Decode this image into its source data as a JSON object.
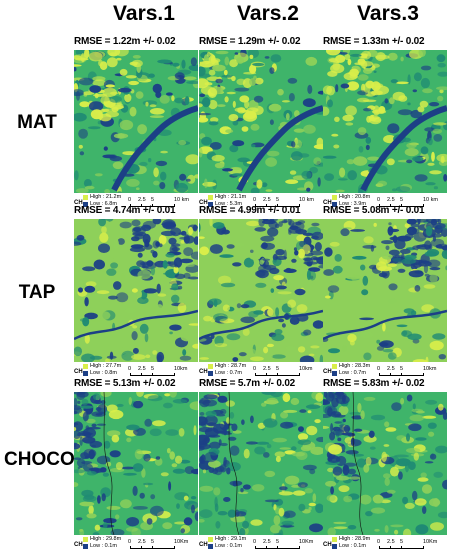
{
  "columns": [
    "Vars.1",
    "Vars.2",
    "Vars.3"
  ],
  "rows": [
    {
      "label": "MAT",
      "scale": {
        "ticks": [
          "0",
          "2.5",
          "5"
        ],
        "end": "10 km"
      },
      "panels": [
        {
          "rmse": "RMSE = 1.22m +/- 0.02",
          "high": "High : 21.2m",
          "low": "Low : 6.8m"
        },
        {
          "rmse": "RMSE = 1.29m +/- 0.02",
          "high": "High : 21.1m",
          "low": "Low : 5.3m"
        },
        {
          "rmse": "RMSE = 1.33m +/- 0.02",
          "high": "High : 20.8m",
          "low": "Low : 3.9m"
        }
      ]
    },
    {
      "label": "TAP",
      "scale": {
        "ticks": [
          "0",
          "2.5",
          "5"
        ],
        "end": "10km"
      },
      "panels": [
        {
          "rmse": "RMSE = 4.74m +/- 0.01",
          "high": "High : 27.7m",
          "low": "Low : 0.8m"
        },
        {
          "rmse": "RMSE = 4.99m +/- 0.01",
          "high": "High : 28.7m",
          "low": "Low : 0.7m"
        },
        {
          "rmse": "RMSE = 5.08m +/- 0.01",
          "high": "High : 28.3m",
          "low": "Low : 0.7m"
        }
      ]
    },
    {
      "label": "CHOCO",
      "scale": {
        "ticks": [
          "0",
          "2.5",
          "5"
        ],
        "end": "10Km"
      },
      "panels": [
        {
          "rmse": "RMSE = 5.13m +/- 0.02",
          "high": "High : 29.8m",
          "low": "Low : 0.1m"
        },
        {
          "rmse": "RMSE = 5.7m +/- 0.02",
          "high": "High : 29.1m",
          "low": "Low : 0.1m"
        },
        {
          "rmse": "RMSE = 5.83m +/- 0.02",
          "high": "High : 28.9m",
          "low": "Low : 0.1m"
        }
      ]
    }
  ],
  "legend_prefix": "CH",
  "colors": {
    "high": "#d9ee4a",
    "mid_light": "#8ed05a",
    "mid": "#3fb46a",
    "mid_dark": "#1f8a74",
    "low": "#1c3f86"
  }
}
